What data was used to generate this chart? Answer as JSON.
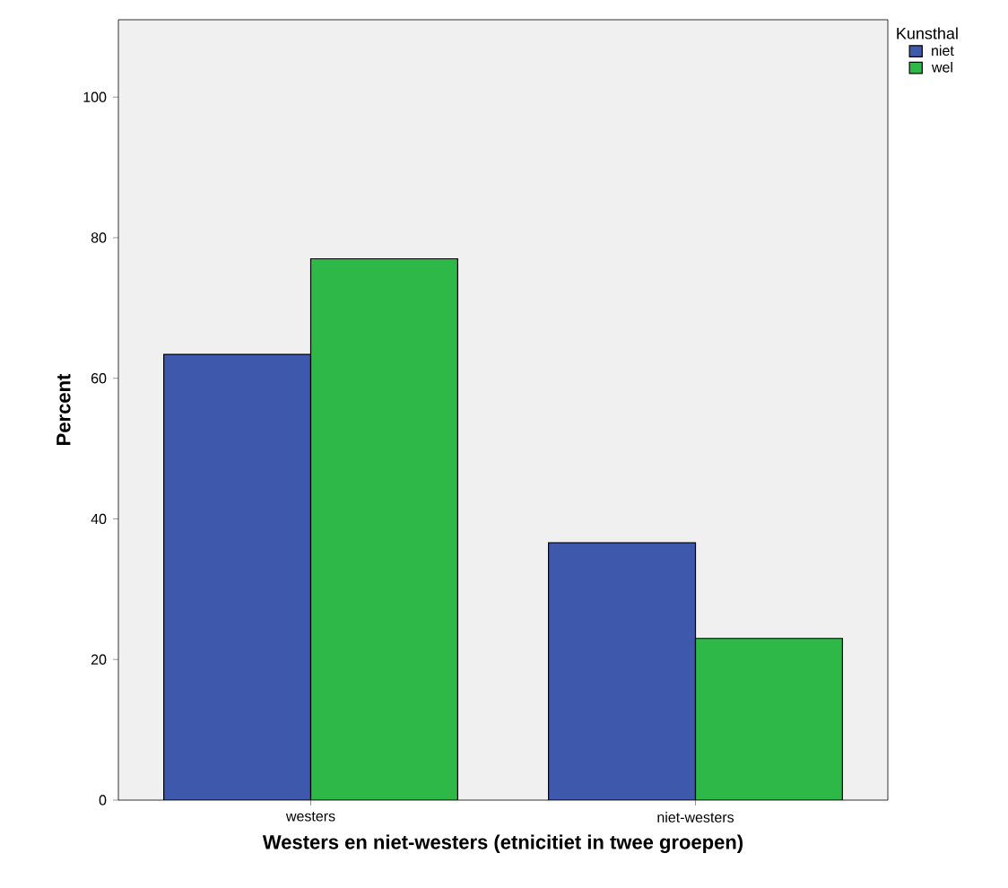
{
  "chart_data": {
    "type": "bar",
    "xlabel": "Westers en niet-westers (etnicitiet in twee groepen)",
    "ylabel": "Percent",
    "legend_title": "Kunsthal",
    "categories": [
      "westers",
      "niet-westers"
    ],
    "series": [
      {
        "name": "niet",
        "color": "#3e58ac",
        "values": [
          63.4,
          36.6
        ]
      },
      {
        "name": "wel",
        "color": "#2eb848",
        "values": [
          77.0,
          23.0
        ]
      }
    ],
    "ylim": [
      0,
      111
    ],
    "yticks": [
      0,
      20,
      40,
      60,
      80,
      100
    ],
    "grid": false,
    "legend": "right"
  }
}
